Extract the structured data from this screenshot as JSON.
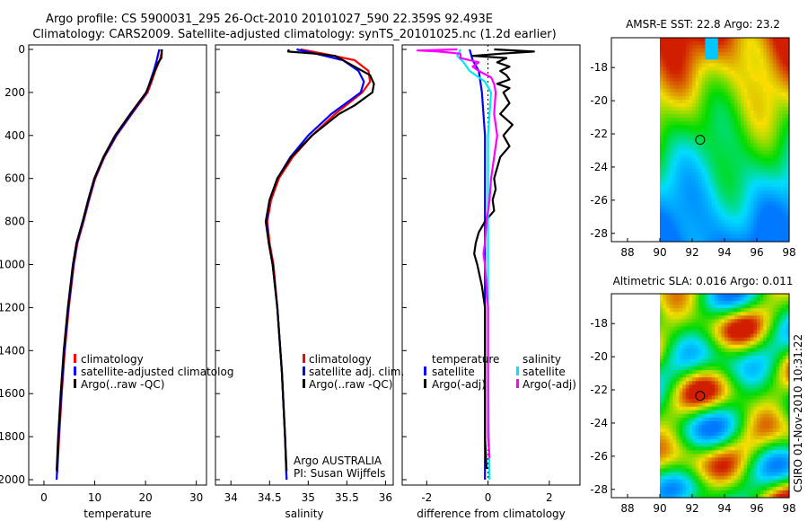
{
  "figure": {
    "title_line1": "Argo profile: CS 5900031_295 26-Oct-2010 20101027_590 22.359S 92.493E",
    "title_line2": "Climatology: CARS2009. Satellite-adjusted climatology: synTS_20101025.nc (1.2d earlier)",
    "side_stamp": "CSIRO 01-Nov-2010 10:31:22",
    "argo_label": "Argo AUSTRALIA",
    "pi_label": "PI: Susan Wijffels"
  },
  "colors": {
    "red": "#ff0000",
    "blue": "#0000ff",
    "black": "#000000",
    "cyan": "#00e8f0",
    "magenta": "#ff00ff"
  },
  "chart_data": [
    {
      "id": "temperature",
      "type": "line",
      "xlabel": "temperature",
      "ylabel": "",
      "xlim": [
        -3,
        32
      ],
      "ylim": [
        2000,
        0
      ],
      "x_ticks": [
        "0",
        "10",
        "20",
        "30"
      ],
      "x_tick_values": [
        0,
        10,
        20,
        30
      ],
      "y_ticks": [
        "0",
        "200",
        "400",
        "600",
        "800",
        "1000",
        "1200",
        "1400",
        "1600",
        "1800",
        "2000"
      ],
      "y_tick_values": [
        0,
        200,
        400,
        600,
        800,
        1000,
        1200,
        1400,
        1600,
        1800,
        2000
      ],
      "legend": {
        "position": "middle-right",
        "entries": [
          "climatology",
          "satellite-adjusted climatolog",
          "Argo(..raw -QC)"
        ]
      },
      "series": [
        {
          "name": "climatology",
          "color": "red",
          "depth": [
            0,
            50,
            100,
            150,
            200,
            300,
            400,
            500,
            600,
            700,
            800,
            900,
            1000,
            1200,
            1400,
            1600,
            1800,
            1970
          ],
          "values": [
            23.3,
            22.8,
            21.9,
            21.2,
            20.4,
            17.3,
            14.3,
            11.9,
            10.1,
            8.9,
            7.8,
            6.6,
            5.9,
            4.9,
            4.1,
            3.5,
            3.0,
            2.6
          ]
        },
        {
          "name": "satellite-adjusted climatolog",
          "color": "blue",
          "depth": [
            0,
            50,
            100,
            150,
            200,
            300,
            400,
            500,
            600,
            700,
            800,
            900,
            1000,
            1200,
            1400,
            1600,
            1800,
            2000
          ],
          "values": [
            22.7,
            22.2,
            21.6,
            20.9,
            20.2,
            17.2,
            14.2,
            11.8,
            10.0,
            8.8,
            7.7,
            6.5,
            5.8,
            4.8,
            4.0,
            3.4,
            2.9,
            2.5
          ]
        },
        {
          "name": "Argo(..raw -QC)",
          "color": "black",
          "depth": [
            0,
            20,
            40,
            60,
            100,
            150,
            200,
            300,
            400,
            500,
            600,
            700,
            800,
            900,
            1000,
            1200,
            1400,
            1600,
            1800,
            1960
          ],
          "values": [
            23.1,
            23.2,
            23.1,
            22.5,
            21.8,
            21.0,
            20.1,
            17.0,
            14.0,
            11.7,
            9.9,
            8.7,
            7.6,
            6.4,
            5.7,
            4.7,
            3.9,
            3.3,
            2.8,
            2.5
          ]
        }
      ]
    },
    {
      "id": "salinity",
      "type": "line",
      "xlabel": "salinity",
      "ylabel": "",
      "xlim": [
        33.8,
        36.1
      ],
      "ylim": [
        2000,
        0
      ],
      "x_ticks": [
        "34",
        "34.5",
        "35",
        "35.5",
        "36"
      ],
      "x_tick_values": [
        34,
        34.5,
        35,
        35.5,
        36
      ],
      "legend": {
        "position": "middle-right",
        "entries": [
          "climatology",
          "satellite adj. clim.",
          "Argo(..raw -QC)"
        ]
      },
      "series": [
        {
          "name": "climatology",
          "color": "red",
          "depth": [
            0,
            20,
            50,
            100,
            150,
            200,
            300,
            400,
            500,
            600,
            700,
            800,
            900,
            1000,
            1200,
            1500,
            1800,
            2000
          ],
          "values": [
            34.9,
            35.2,
            35.6,
            35.78,
            35.8,
            35.7,
            35.35,
            35.05,
            34.8,
            34.62,
            34.52,
            34.47,
            34.5,
            34.55,
            34.6,
            34.66,
            34.7,
            34.72
          ]
        },
        {
          "name": "satellite adj. clim.",
          "color": "blue",
          "depth": [
            0,
            20,
            50,
            100,
            150,
            200,
            300,
            400,
            500,
            600,
            700,
            800,
            900,
            1000,
            1200,
            1500,
            1800,
            2000
          ],
          "values": [
            34.85,
            35.1,
            35.45,
            35.65,
            35.72,
            35.68,
            35.3,
            35.0,
            34.77,
            34.6,
            34.5,
            34.46,
            34.49,
            34.54,
            34.6,
            34.66,
            34.7,
            34.72
          ]
        },
        {
          "name": "Argo(..raw -QC)",
          "color": "black",
          "depth": [
            0,
            10,
            20,
            30,
            50,
            80,
            120,
            160,
            200,
            260,
            300,
            400,
            500,
            600,
            700,
            800,
            900,
            1000,
            1200,
            1500,
            1800,
            1960
          ],
          "values": [
            34.75,
            34.74,
            35.1,
            35.35,
            35.45,
            35.6,
            35.8,
            35.85,
            35.83,
            35.6,
            35.4,
            35.05,
            34.78,
            34.6,
            34.5,
            34.45,
            34.49,
            34.54,
            34.6,
            34.66,
            34.7,
            34.72
          ]
        }
      ]
    },
    {
      "id": "difference",
      "type": "line",
      "xlabel": "difference from climatology",
      "ylabel": "",
      "xlim": [
        -2.8,
        3
      ],
      "ylim": [
        2000,
        0
      ],
      "x_ticks": [
        "-2",
        "0",
        "2"
      ],
      "x_tick_values": [
        -2,
        0,
        2
      ],
      "zero_line": true,
      "legend": {
        "position": "middle",
        "temperature_title": "temperature",
        "salinity_title": "salinity",
        "entries": [
          "satellite",
          "Argo(-adj)",
          "satellite",
          "Argo(-adj)"
        ]
      },
      "series": [
        {
          "name": "temperature satellite",
          "color": "blue",
          "depth": [
            0,
            50,
            100,
            200,
            400,
            600,
            800,
            1000,
            1500,
            2000
          ],
          "values": [
            -0.6,
            -0.5,
            -0.3,
            -0.2,
            -0.1,
            -0.1,
            -0.1,
            -0.1,
            -0.1,
            -0.1
          ]
        },
        {
          "name": "temperature Argo(-adj)",
          "color": "black",
          "depth": [
            0,
            10,
            20,
            30,
            40,
            60,
            80,
            100,
            120,
            140,
            160,
            180,
            200,
            250,
            300,
            350,
            400,
            450,
            500,
            550,
            600,
            650,
            700,
            750,
            800,
            850,
            900,
            950,
            1000,
            1100,
            1200,
            1400,
            1600,
            1800,
            1950
          ],
          "values": [
            0.2,
            1.5,
            0.4,
            -0.5,
            0.6,
            0.3,
            0.7,
            0.4,
            0.6,
            0.7,
            0.3,
            0.7,
            0.5,
            0.7,
            0.4,
            0.8,
            0.5,
            0.7,
            0.4,
            0.3,
            0.2,
            0.25,
            0.15,
            0.2,
            -0.1,
            -0.3,
            -0.4,
            -0.45,
            -0.35,
            -0.2,
            -0.1,
            -0.1,
            -0.1,
            -0.1,
            -0.05
          ]
        },
        {
          "name": "salinity satellite",
          "color": "cyan",
          "depth": [
            0,
            30,
            60,
            100,
            150,
            200,
            300,
            400,
            600,
            800,
            1000,
            1500,
            2000
          ],
          "values": [
            -0.9,
            -1.0,
            -0.8,
            -0.6,
            -0.1,
            0.1,
            0.05,
            0.0,
            0.0,
            0.0,
            0.0,
            0.0,
            0.05
          ]
        },
        {
          "name": "salinity Argo(-adj)",
          "color": "magenta",
          "depth": [
            0,
            5,
            10,
            20,
            40,
            60,
            80,
            100,
            130,
            160,
            200,
            300,
            400,
            500,
            600,
            700,
            800,
            900,
            950,
            1000,
            1100,
            1200,
            1400,
            1600,
            1800,
            1900
          ],
          "values": [
            -1.0,
            -2.3,
            -1.6,
            -0.9,
            -0.9,
            -0.3,
            -0.5,
            -0.3,
            0.1,
            0.2,
            0.25,
            0.2,
            0.3,
            0.2,
            0.1,
            0.05,
            -0.05,
            -0.1,
            -0.15,
            -0.1,
            -0.05,
            0.0,
            0.0,
            0.0,
            0.0,
            0.05
          ]
        }
      ]
    },
    {
      "id": "sst_map",
      "type": "heatmap",
      "title": "AMSR-E SST: 22.8 Argo: 23.2",
      "x_ticks": [
        "88",
        "90",
        "92",
        "94",
        "96",
        "98"
      ],
      "x_tick_values": [
        88,
        90,
        92,
        94,
        96,
        98
      ],
      "y_ticks": [
        "-18",
        "-20",
        "-22",
        "-24",
        "-26",
        "-28"
      ],
      "y_tick_values": [
        -18,
        -20,
        -22,
        -24,
        -26,
        -28
      ],
      "xlim": [
        87,
        98
      ],
      "ylim": [
        -28.5,
        -16.2
      ],
      "data_lon_range": [
        90,
        98
      ],
      "float_position": [
        92.493,
        -22.359
      ],
      "value_range": [
        21,
        25
      ]
    },
    {
      "id": "sla_map",
      "type": "heatmap",
      "title": "Altimetric SLA: 0.016 Argo: 0.011",
      "x_ticks": [
        "88",
        "90",
        "92",
        "94",
        "96",
        "98"
      ],
      "x_tick_values": [
        88,
        90,
        92,
        94,
        96,
        98
      ],
      "y_ticks": [
        "-18",
        "-20",
        "-22",
        "-24",
        "-26",
        "-28"
      ],
      "y_tick_values": [
        -18,
        -20,
        -22,
        -24,
        -26,
        -28
      ],
      "xlim": [
        87,
        98
      ],
      "ylim": [
        -28.5,
        -16.2
      ],
      "data_lon_range": [
        90,
        98
      ],
      "float_position": [
        92.493,
        -22.359
      ],
      "value_range": [
        -0.05,
        0.08
      ]
    }
  ]
}
